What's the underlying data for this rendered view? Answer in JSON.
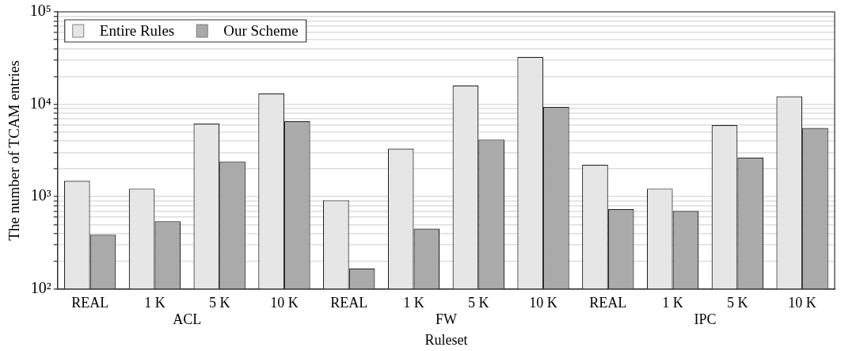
{
  "chart_data": {
    "type": "bar",
    "xlabel": "Ruleset",
    "ylabel": "The number of TCAM entries",
    "categories": [
      "REAL",
      "1 K",
      "5 K",
      "10 K",
      "REAL",
      "1 K",
      "5 K",
      "10 K",
      "REAL",
      "1 K",
      "5 K",
      "10 K"
    ],
    "annotations": [
      "ACL",
      "FW",
      "IPC"
    ],
    "series": [
      {
        "name": "Entire Rules",
        "color": "#e6e6e6",
        "values": [
          1480,
          1220,
          6170,
          13100,
          916,
          3320,
          16000,
          32600,
          2210,
          1220,
          5970,
          12200
        ]
      },
      {
        "name": "Our Scheme",
        "color": "#aaaaaa",
        "values": [
          387,
          542,
          2410,
          6580,
          167,
          451,
          4150,
          9330,
          736,
          700,
          2640,
          5530
        ]
      }
    ],
    "log": "y",
    "ylim": [
      100,
      100000
    ],
    "yticks": [
      {
        "value": 100,
        "label": "10²"
      },
      {
        "value": 200,
        "label": null
      },
      {
        "value": 300,
        "label": null
      },
      {
        "value": 400,
        "label": null
      },
      {
        "value": 500,
        "label": null
      },
      {
        "value": 600,
        "label": null
      },
      {
        "value": 700,
        "label": null
      },
      {
        "value": 800,
        "label": null
      },
      {
        "value": 900,
        "label": null
      },
      {
        "value": 1000,
        "label": "10³"
      },
      {
        "value": 2000,
        "label": null
      },
      {
        "value": 3000,
        "label": null
      },
      {
        "value": 4000,
        "label": null
      },
      {
        "value": 5000,
        "label": null
      },
      {
        "value": 6000,
        "label": null
      },
      {
        "value": 7000,
        "label": null
      },
      {
        "value": 8000,
        "label": null
      },
      {
        "value": 9000,
        "label": null
      },
      {
        "value": 10000,
        "label": "10⁴"
      },
      {
        "value": 20000,
        "label": null
      },
      {
        "value": 30000,
        "label": null
      },
      {
        "value": 40000,
        "label": null
      },
      {
        "value": 50000,
        "label": null
      },
      {
        "value": 60000,
        "label": null
      },
      {
        "value": 70000,
        "label": null
      },
      {
        "value": 80000,
        "label": null
      },
      {
        "value": 90000,
        "label": null
      },
      {
        "value": 100000,
        "label": "10⁵"
      }
    ],
    "grid": "y",
    "legend": "top left"
  }
}
